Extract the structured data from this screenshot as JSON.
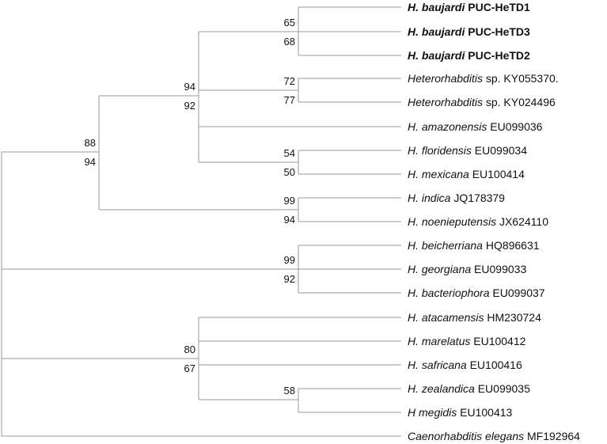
{
  "tree": {
    "taxa": [
      {
        "genus": "H. baujardi",
        "rest": "PUC-HeTD1",
        "bold": true
      },
      {
        "genus": "H. baujardi",
        "rest": "PUC-HeTD3",
        "bold": true
      },
      {
        "genus": "H. baujardi",
        "rest": "PUC-HeTD2",
        "bold": true
      },
      {
        "genus": "Heterorhabditis",
        "rest": "sp. KY055370.",
        "bold": false
      },
      {
        "genus": "Heterorhabditis",
        "rest": "sp. KY024496",
        "bold": false
      },
      {
        "genus": "H. amazonensis",
        "rest": "EU099036",
        "bold": false
      },
      {
        "genus": "H. floridensis",
        "rest": "EU099034",
        "bold": false
      },
      {
        "genus": "H. mexicana",
        "rest": "EU100414",
        "bold": false
      },
      {
        "genus": "H. indica",
        "rest": "JQ178379",
        "bold": false
      },
      {
        "genus": "H. noenieputensis",
        "rest": "JX624110",
        "bold": false
      },
      {
        "genus": "H. beicherriana",
        "rest": "HQ896631",
        "bold": false
      },
      {
        "genus": "H. georgiana",
        "rest": "EU099033",
        "bold": false
      },
      {
        "genus": "H. bacteriophora",
        "rest": "EU099037",
        "bold": false
      },
      {
        "genus": "H. atacamensis",
        "rest": "HM230724",
        "bold": false
      },
      {
        "genus": "H. marelatus",
        "rest": "EU100412",
        "bold": false
      },
      {
        "genus": "H. safricana",
        "rest": "EU100416",
        "bold": false
      },
      {
        "genus": "H. zealandica",
        "rest": "EU099035",
        "bold": false
      },
      {
        "genus": "H megidis",
        "rest": "EU100413",
        "bold": false
      },
      {
        "genus": "Caenorhabditis elegans",
        "rest": "MF192964",
        "bold": false
      }
    ],
    "support": [
      {
        "top": "65",
        "bottom": "68"
      },
      {
        "top": "72",
        "bottom": "77"
      },
      {
        "top": "54",
        "bottom": "50"
      },
      {
        "top": "94",
        "bottom": "92"
      },
      {
        "top": "99",
        "bottom": "94"
      },
      {
        "top": "88",
        "bottom": "94"
      },
      {
        "top": "99",
        "bottom": "92"
      },
      {
        "top": "58",
        "bottom": ""
      },
      {
        "top": "80",
        "bottom": "67"
      }
    ]
  }
}
